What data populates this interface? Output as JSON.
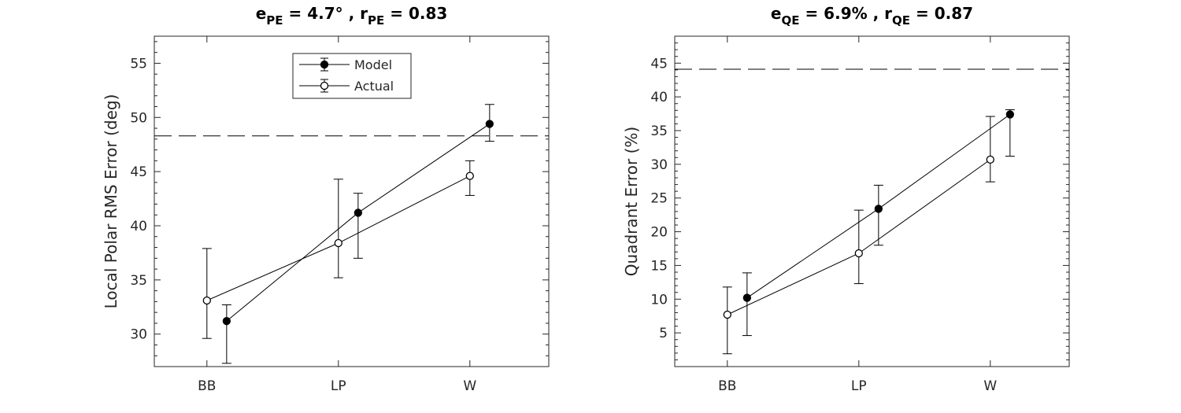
{
  "chart_data": [
    {
      "type": "scatter",
      "title": {
        "parts": [
          {
            "t": "e",
            "sub": false
          },
          {
            "t": "PE",
            "sub": true
          },
          {
            "t": " = 4.7° , r",
            "sub": false
          },
          {
            "t": "PE",
            "sub": true
          },
          {
            "t": " = 0.83",
            "sub": false
          }
        ]
      },
      "xlabel": "",
      "ylabel": "Local Polar RMS Error (deg)",
      "categories": [
        "BB",
        "LP",
        "W"
      ],
      "xlim": [
        0.6,
        3.6
      ],
      "ylim": [
        27,
        57.5
      ],
      "ytick_values": [
        30,
        35,
        40,
        45,
        50,
        55
      ],
      "ytick_labels": [
        "30",
        "35",
        "40",
        "45",
        "50",
        "55"
      ],
      "reference_line": 48.3,
      "grid": false,
      "legend": {
        "position": "top-center",
        "entries": [
          "Model",
          "Actual"
        ]
      },
      "series": [
        {
          "name": "Model",
          "marker": "filled-circle",
          "x": [
            1.15,
            2.15,
            3.15
          ],
          "y": [
            31.2,
            41.2,
            49.4
          ],
          "err_low": [
            27.3,
            37.0,
            47.8
          ],
          "err_high": [
            32.7,
            43.0,
            51.2
          ]
        },
        {
          "name": "Actual",
          "marker": "open-circle",
          "x": [
            1.0,
            2.0,
            3.0
          ],
          "y": [
            33.1,
            38.4,
            44.6
          ],
          "err_low": [
            29.6,
            35.2,
            42.8
          ],
          "err_high": [
            37.9,
            44.3,
            46.0
          ]
        }
      ]
    },
    {
      "type": "scatter",
      "title": {
        "parts": [
          {
            "t": "e",
            "sub": false
          },
          {
            "t": "QE",
            "sub": true
          },
          {
            "t": " = 6.9% , r",
            "sub": false
          },
          {
            "t": "QE",
            "sub": true
          },
          {
            "t": " = 0.87",
            "sub": false
          }
        ]
      },
      "xlabel": "",
      "ylabel": "Quadrant Error (%)",
      "categories": [
        "BB",
        "LP",
        "W"
      ],
      "xlim": [
        0.6,
        3.6
      ],
      "ylim": [
        0,
        49
      ],
      "ytick_values": [
        5,
        10,
        15,
        20,
        25,
        30,
        35,
        40,
        45
      ],
      "ytick_labels": [
        "5",
        "10",
        "15",
        "20",
        "25",
        "30",
        "35",
        "40",
        "45"
      ],
      "reference_line": 44.1,
      "grid": false,
      "series": [
        {
          "name": "Model",
          "marker": "filled-circle",
          "x": [
            1.15,
            2.15,
            3.15
          ],
          "y": [
            10.2,
            23.4,
            37.4
          ],
          "err_low": [
            4.6,
            18.0,
            31.2
          ],
          "err_high": [
            13.9,
            26.9,
            38.1
          ]
        },
        {
          "name": "Actual",
          "marker": "open-circle",
          "x": [
            1.0,
            2.0,
            3.0
          ],
          "y": [
            7.7,
            16.8,
            30.7
          ],
          "err_low": [
            1.9,
            12.3,
            27.4
          ],
          "err_high": [
            11.8,
            23.2,
            37.1
          ]
        }
      ]
    }
  ]
}
